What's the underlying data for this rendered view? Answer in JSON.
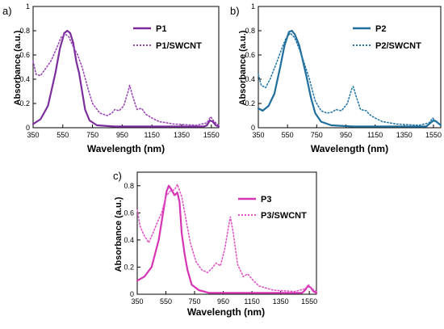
{
  "chart_data": [
    {
      "type": "line",
      "panel_label": "a)",
      "xlabel": "Wavelength (nm)",
      "ylabel": "Absorbance (a.u.)",
      "xlim": [
        350,
        1600
      ],
      "ylim": [
        0,
        1.0
      ],
      "xticks": [
        350,
        550,
        750,
        950,
        1150,
        1350,
        1550
      ],
      "yticks": [
        0,
        0.2,
        0.4,
        0.6,
        0.8,
        1
      ],
      "ytick_labels": [
        "0",
        "0.2",
        "0.4",
        "0.6",
        "0.8",
        "1"
      ],
      "legend_position": "top-right",
      "series": [
        {
          "name": "P1",
          "style": "solid",
          "color": "#7b2d9e",
          "points": [
            [
              350,
              0.03
            ],
            [
              400,
              0.07
            ],
            [
              450,
              0.18
            ],
            [
              500,
              0.45
            ],
            [
              530,
              0.65
            ],
            [
              560,
              0.78
            ],
            [
              580,
              0.8
            ],
            [
              600,
              0.78
            ],
            [
              620,
              0.7
            ],
            [
              640,
              0.55
            ],
            [
              660,
              0.45
            ],
            [
              680,
              0.3
            ],
            [
              700,
              0.15
            ],
            [
              730,
              0.06
            ],
            [
              780,
              0.02
            ],
            [
              900,
              0.01
            ],
            [
              1200,
              0.01
            ],
            [
              1500,
              0.01
            ],
            [
              1520,
              0.02
            ],
            [
              1540,
              0.06
            ],
            [
              1560,
              0.05
            ],
            [
              1580,
              0.02
            ],
            [
              1600,
              0.01
            ]
          ]
        },
        {
          "name": "P1/SWCNT",
          "style": "dotted",
          "color": "#9a48b8",
          "points": [
            [
              350,
              0.55
            ],
            [
              370,
              0.44
            ],
            [
              400,
              0.43
            ],
            [
              430,
              0.48
            ],
            [
              470,
              0.55
            ],
            [
              510,
              0.66
            ],
            [
              540,
              0.75
            ],
            [
              570,
              0.77
            ],
            [
              590,
              0.75
            ],
            [
              620,
              0.67
            ],
            [
              650,
              0.6
            ],
            [
              680,
              0.5
            ],
            [
              720,
              0.32
            ],
            [
              750,
              0.2
            ],
            [
              800,
              0.12
            ],
            [
              850,
              0.1
            ],
            [
              880,
              0.12
            ],
            [
              900,
              0.15
            ],
            [
              930,
              0.14
            ],
            [
              960,
              0.18
            ],
            [
              990,
              0.3
            ],
            [
              1000,
              0.35
            ],
            [
              1020,
              0.26
            ],
            [
              1050,
              0.15
            ],
            [
              1080,
              0.16
            ],
            [
              1110,
              0.11
            ],
            [
              1150,
              0.08
            ],
            [
              1200,
              0.05
            ],
            [
              1300,
              0.03
            ],
            [
              1450,
              0.02
            ],
            [
              1520,
              0.04
            ],
            [
              1545,
              0.09
            ],
            [
              1570,
              0.05
            ],
            [
              1600,
              0.02
            ]
          ]
        }
      ]
    },
    {
      "type": "line",
      "panel_label": "b)",
      "xlabel": "Wavelength (nm)",
      "ylabel": "Absorbance (a.u.)",
      "xlim": [
        350,
        1600
      ],
      "ylim": [
        0,
        1.0
      ],
      "xticks": [
        350,
        550,
        750,
        950,
        1150,
        1350,
        1550
      ],
      "yticks": [
        0,
        0.2,
        0.4,
        0.6,
        0.8,
        1
      ],
      "ytick_labels": [
        "0",
        "0.2",
        "0.4",
        "0.6",
        "0.8",
        "1"
      ],
      "legend_position": "top-right",
      "series": [
        {
          "name": "P2",
          "style": "solid",
          "color": "#1f6e9c",
          "points": [
            [
              350,
              0.16
            ],
            [
              380,
              0.14
            ],
            [
              420,
              0.18
            ],
            [
              460,
              0.28
            ],
            [
              500,
              0.5
            ],
            [
              530,
              0.68
            ],
            [
              560,
              0.79
            ],
            [
              580,
              0.8
            ],
            [
              600,
              0.77
            ],
            [
              630,
              0.68
            ],
            [
              650,
              0.58
            ],
            [
              680,
              0.42
            ],
            [
              710,
              0.25
            ],
            [
              740,
              0.12
            ],
            [
              780,
              0.05
            ],
            [
              850,
              0.02
            ],
            [
              1000,
              0.01
            ],
            [
              1300,
              0.01
            ],
            [
              1500,
              0.01
            ],
            [
              1530,
              0.04
            ],
            [
              1550,
              0.06
            ],
            [
              1570,
              0.05
            ],
            [
              1600,
              0.02
            ]
          ]
        },
        {
          "name": "P2/SWCNT",
          "style": "dotted",
          "color": "#2878a8",
          "points": [
            [
              350,
              0.44
            ],
            [
              370,
              0.35
            ],
            [
              400,
              0.33
            ],
            [
              430,
              0.4
            ],
            [
              470,
              0.52
            ],
            [
              510,
              0.65
            ],
            [
              540,
              0.74
            ],
            [
              570,
              0.78
            ],
            [
              600,
              0.74
            ],
            [
              630,
              0.65
            ],
            [
              660,
              0.55
            ],
            [
              700,
              0.4
            ],
            [
              740,
              0.22
            ],
            [
              780,
              0.14
            ],
            [
              820,
              0.12
            ],
            [
              860,
              0.13
            ],
            [
              880,
              0.15
            ],
            [
              920,
              0.14
            ],
            [
              960,
              0.2
            ],
            [
              990,
              0.32
            ],
            [
              1000,
              0.34
            ],
            [
              1020,
              0.26
            ],
            [
              1050,
              0.15
            ],
            [
              1090,
              0.14
            ],
            [
              1110,
              0.11
            ],
            [
              1150,
              0.08
            ],
            [
              1200,
              0.05
            ],
            [
              1300,
              0.03
            ],
            [
              1450,
              0.02
            ],
            [
              1520,
              0.04
            ],
            [
              1545,
              0.08
            ],
            [
              1570,
              0.05
            ],
            [
              1600,
              0.02
            ]
          ]
        }
      ]
    },
    {
      "type": "line",
      "panel_label": "c)",
      "xlabel": "Wavelength (nm)",
      "ylabel": "Absorbance (a.u.)",
      "xlim": [
        350,
        1600
      ],
      "ylim": [
        0,
        0.9
      ],
      "xticks": [
        350,
        550,
        750,
        950,
        1150,
        1350,
        1550
      ],
      "yticks": [
        0,
        0.2,
        0.4,
        0.6,
        0.8
      ],
      "ytick_labels": [
        "0",
        "0.2",
        "0.4",
        "0.6",
        "0.8"
      ],
      "legend_position": "top-right",
      "series": [
        {
          "name": "P3",
          "style": "solid",
          "color": "#d633b5",
          "points": [
            [
              350,
              0.1
            ],
            [
              400,
              0.13
            ],
            [
              450,
              0.2
            ],
            [
              500,
              0.4
            ],
            [
              530,
              0.6
            ],
            [
              555,
              0.76
            ],
            [
              570,
              0.8
            ],
            [
              590,
              0.77
            ],
            [
              610,
              0.73
            ],
            [
              630,
              0.75
            ],
            [
              645,
              0.68
            ],
            [
              660,
              0.45
            ],
            [
              680,
              0.3
            ],
            [
              700,
              0.18
            ],
            [
              730,
              0.07
            ],
            [
              780,
              0.03
            ],
            [
              850,
              0.01
            ],
            [
              1200,
              0.01
            ],
            [
              1500,
              0.01
            ],
            [
              1520,
              0.03
            ],
            [
              1540,
              0.06
            ],
            [
              1560,
              0.05
            ],
            [
              1580,
              0.02
            ],
            [
              1600,
              0.01
            ]
          ]
        },
        {
          "name": "P3/SWCNT",
          "style": "dotted",
          "color": "#e055c4",
          "points": [
            [
              350,
              0.62
            ],
            [
              370,
              0.5
            ],
            [
              400,
              0.43
            ],
            [
              430,
              0.38
            ],
            [
              460,
              0.45
            ],
            [
              490,
              0.53
            ],
            [
              520,
              0.6
            ],
            [
              550,
              0.72
            ],
            [
              580,
              0.76
            ],
            [
              610,
              0.77
            ],
            [
              630,
              0.81
            ],
            [
              660,
              0.72
            ],
            [
              690,
              0.55
            ],
            [
              720,
              0.38
            ],
            [
              760,
              0.24
            ],
            [
              800,
              0.18
            ],
            [
              840,
              0.16
            ],
            [
              870,
              0.19
            ],
            [
              900,
              0.23
            ],
            [
              930,
              0.21
            ],
            [
              960,
              0.33
            ],
            [
              990,
              0.52
            ],
            [
              1000,
              0.57
            ],
            [
              1020,
              0.45
            ],
            [
              1050,
              0.22
            ],
            [
              1090,
              0.13
            ],
            [
              1120,
              0.15
            ],
            [
              1160,
              0.1
            ],
            [
              1200,
              0.06
            ],
            [
              1300,
              0.03
            ],
            [
              1450,
              0.02
            ],
            [
              1520,
              0.04
            ],
            [
              1545,
              0.07
            ],
            [
              1570,
              0.04
            ],
            [
              1600,
              0.02
            ]
          ]
        }
      ]
    }
  ]
}
